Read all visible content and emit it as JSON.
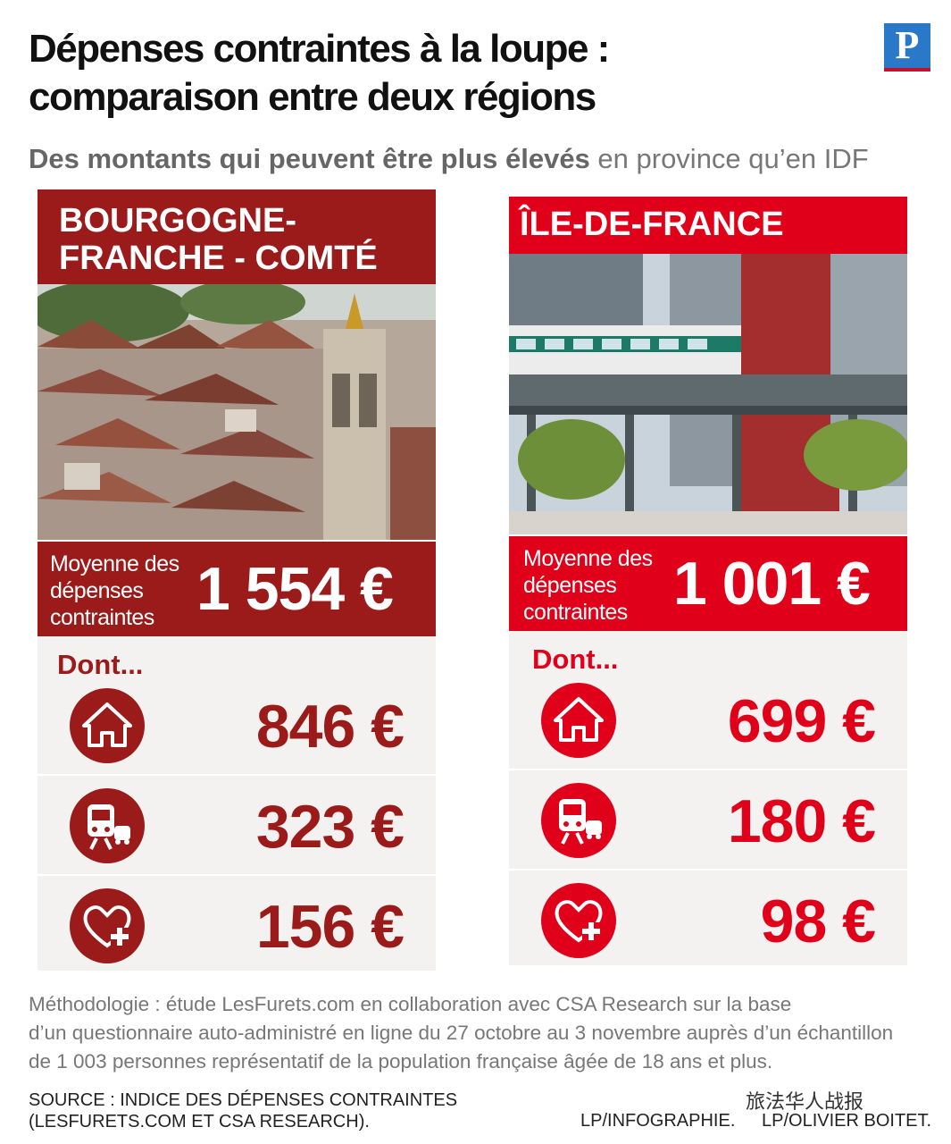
{
  "title": {
    "line1": "Dépenses contraintes à la loupe :",
    "line2": "comparaison entre deux régions"
  },
  "logo": "P",
  "subtitle": {
    "bold": "Des montants qui peuvent être plus élevés",
    "normal": " en province qu’en IDF"
  },
  "colors": {
    "bourgogne": "#9b1b1b",
    "idf": "#e1001a",
    "panel_bg": "#f4f2f1"
  },
  "regions": [
    {
      "name_line1": "BOURGOGNE-",
      "name_line2": "FRANCHE - COMTÉ",
      "avg_label_line1": "Moyenne des",
      "avg_label_line2": "dépenses",
      "avg_label_line3": "contraintes",
      "avg_value": "1 554 €",
      "dont": "Dont...",
      "items": [
        {
          "icon": "house-icon",
          "value": "846 €"
        },
        {
          "icon": "transport-icon",
          "value": "323 €"
        },
        {
          "icon": "health-icon",
          "value": "156 €"
        }
      ]
    },
    {
      "name_line1": "ÎLE-DE-FRANCE",
      "name_line2": "",
      "avg_label_line1": "Moyenne des",
      "avg_label_line2": "dépenses",
      "avg_label_line3": "contraintes",
      "avg_value": "1 001 €",
      "dont": "Dont...",
      "items": [
        {
          "icon": "house-icon",
          "value": "699 €"
        },
        {
          "icon": "transport-icon",
          "value": "180 €"
        },
        {
          "icon": "health-icon",
          "value": "98 €"
        }
      ]
    }
  ],
  "methodology": {
    "line1": "Méthodologie : étude LesFurets.com en collaboration avec CSA Research sur la base",
    "line2": "d’un questionnaire auto-administré en ligne du 27 octobre au 3 novembre auprès d’un échantillon",
    "line3": "de 1 003 personnes représentatif de la population française âgée de 18 ans et plus."
  },
  "source": {
    "line1": "SOURCE : INDICE DES DÉPENSES CONTRAINTES",
    "line2": "(LESFURETS.COM ET CSA RESEARCH)."
  },
  "credit_infographie": "LP/INFOGRAPHIE.",
  "credit_photo": "LP/OLIVIER BOITET.",
  "watermark": "旅法华人战报"
}
